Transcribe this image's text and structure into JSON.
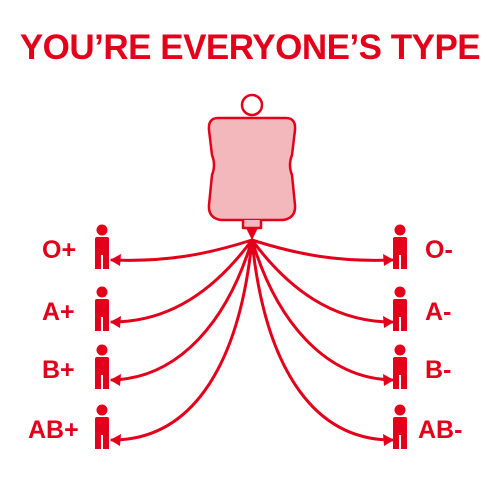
{
  "title": "YOU’RE EVERYONE’S TYPE",
  "colors": {
    "accent": "#e3001b",
    "bag_fill": "#f2b8bc"
  },
  "icons": {
    "bag": "blood-bag-icon",
    "person": "person-icon"
  },
  "left_types": [
    "O+",
    "A+",
    "B+",
    "AB+"
  ],
  "right_types": [
    "O-",
    "A-",
    "B-",
    "AB-"
  ]
}
